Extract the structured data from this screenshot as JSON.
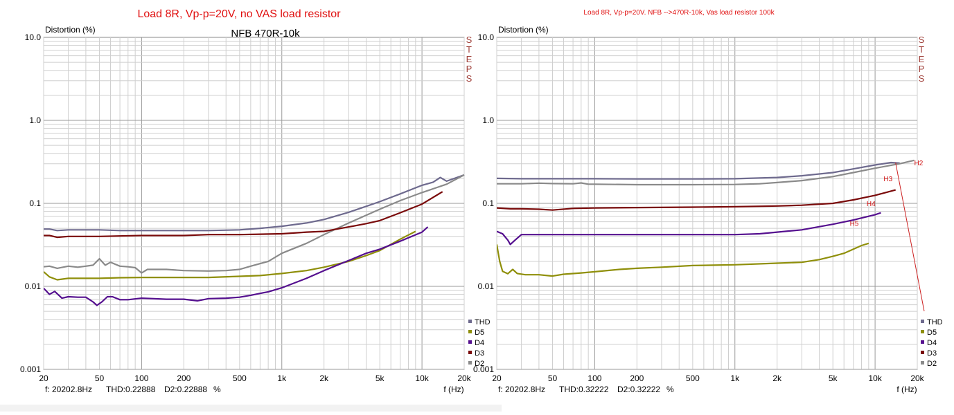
{
  "chart_data": [
    {
      "type": "line",
      "header": "Load 8R, Vp-p=20V, no VAS load resistor",
      "title": "NFB 470R-10k",
      "ylabel": "Distortion (%)",
      "xlabel": "f (Hz)",
      "steps_label": "STEPS",
      "x_scale": "log",
      "y_scale": "log",
      "xlim": [
        20,
        20000
      ],
      "ylim": [
        0.001,
        10
      ],
      "grid": true,
      "legend_position": "bottom-right",
      "x_ticks": [
        "20",
        "50",
        "100",
        "200",
        "500",
        "1k",
        "2k",
        "5k",
        "10k",
        "20k"
      ],
      "y_ticks": [
        "0.001",
        "0.01",
        "0.1",
        "1.0",
        "10.0"
      ],
      "readout": {
        "freq": "f: 20202.8Hz",
        "thd": "THD:0.22888",
        "d2": "D2:0.22888",
        "unit": "%"
      },
      "legend": [
        {
          "name": "THD",
          "color": "#6e6a8e"
        },
        {
          "name": "D5",
          "color": "#8f8f0a"
        },
        {
          "name": "D4",
          "color": "#55108f"
        },
        {
          "name": "D3",
          "color": "#7a0a0a"
        },
        {
          "name": "D2",
          "color": "#8a8a8a"
        }
      ],
      "series": [
        {
          "name": "THD",
          "color": "#6e6a8e",
          "points": [
            [
              20,
              0.049
            ],
            [
              22,
              0.049
            ],
            [
              25,
              0.047
            ],
            [
              30,
              0.048
            ],
            [
              50,
              0.048
            ],
            [
              70,
              0.047
            ],
            [
              100,
              0.047
            ],
            [
              200,
              0.047
            ],
            [
              300,
              0.047
            ],
            [
              500,
              0.048
            ],
            [
              700,
              0.05
            ],
            [
              1000,
              0.053
            ],
            [
              1500,
              0.058
            ],
            [
              2000,
              0.064
            ],
            [
              3000,
              0.078
            ],
            [
              4000,
              0.092
            ],
            [
              5000,
              0.105
            ],
            [
              7000,
              0.13
            ],
            [
              10000,
              0.165
            ],
            [
              12000,
              0.18
            ],
            [
              13500,
              0.205
            ],
            [
              15000,
              0.185
            ],
            [
              20000,
              0.22
            ]
          ]
        },
        {
          "name": "D2",
          "color": "#8a8a8a",
          "points": [
            [
              20,
              0.0172
            ],
            [
              22,
              0.0175
            ],
            [
              25,
              0.0165
            ],
            [
              30,
              0.0175
            ],
            [
              35,
              0.017
            ],
            [
              40,
              0.0175
            ],
            [
              45,
              0.018
            ],
            [
              50,
              0.0215
            ],
            [
              55,
              0.018
            ],
            [
              60,
              0.0195
            ],
            [
              70,
              0.0175
            ],
            [
              80,
              0.0172
            ],
            [
              90,
              0.0168
            ],
            [
              100,
              0.0145
            ],
            [
              110,
              0.016
            ],
            [
              150,
              0.016
            ],
            [
              200,
              0.0155
            ],
            [
              300,
              0.0153
            ],
            [
              400,
              0.0155
            ],
            [
              500,
              0.016
            ],
            [
              600,
              0.0175
            ],
            [
              800,
              0.02
            ],
            [
              1000,
              0.025
            ],
            [
              1500,
              0.033
            ],
            [
              2000,
              0.042
            ],
            [
              3000,
              0.058
            ],
            [
              5000,
              0.085
            ],
            [
              7000,
              0.108
            ],
            [
              10000,
              0.135
            ],
            [
              15000,
              0.17
            ],
            [
              20000,
              0.22
            ]
          ]
        },
        {
          "name": "D3",
          "color": "#7a0a0a",
          "points": [
            [
              20,
              0.041
            ],
            [
              22,
              0.041
            ],
            [
              25,
              0.039
            ],
            [
              30,
              0.04
            ],
            [
              50,
              0.04
            ],
            [
              100,
              0.041
            ],
            [
              200,
              0.041
            ],
            [
              300,
              0.042
            ],
            [
              500,
              0.042
            ],
            [
              1000,
              0.043
            ],
            [
              1500,
              0.045
            ],
            [
              2000,
              0.046
            ],
            [
              3000,
              0.052
            ],
            [
              4000,
              0.057
            ],
            [
              5000,
              0.062
            ],
            [
              7000,
              0.077
            ],
            [
              10000,
              0.098
            ],
            [
              14000,
              0.138
            ]
          ]
        },
        {
          "name": "D5",
          "color": "#8f8f0a",
          "points": [
            [
              20,
              0.015
            ],
            [
              22,
              0.013
            ],
            [
              25,
              0.012
            ],
            [
              30,
              0.0125
            ],
            [
              50,
              0.0125
            ],
            [
              70,
              0.0127
            ],
            [
              100,
              0.0128
            ],
            [
              200,
              0.0128
            ],
            [
              300,
              0.0128
            ],
            [
              500,
              0.0132
            ],
            [
              700,
              0.0135
            ],
            [
              1000,
              0.0143
            ],
            [
              1500,
              0.0155
            ],
            [
              2000,
              0.017
            ],
            [
              3000,
              0.02
            ],
            [
              4000,
              0.0235
            ],
            [
              5000,
              0.027
            ],
            [
              7000,
              0.037
            ],
            [
              9000,
              0.046
            ]
          ]
        },
        {
          "name": "D4",
          "color": "#55108f",
          "points": [
            [
              20,
              0.0095
            ],
            [
              22,
              0.008
            ],
            [
              24,
              0.0087
            ],
            [
              27,
              0.0072
            ],
            [
              30,
              0.0075
            ],
            [
              35,
              0.0074
            ],
            [
              40,
              0.0074
            ],
            [
              45,
              0.0065
            ],
            [
              48,
              0.0059
            ],
            [
              52,
              0.0065
            ],
            [
              57,
              0.0075
            ],
            [
              62,
              0.0075
            ],
            [
              70,
              0.0069
            ],
            [
              80,
              0.0069
            ],
            [
              100,
              0.0072
            ],
            [
              150,
              0.007
            ],
            [
              200,
              0.007
            ],
            [
              250,
              0.0067
            ],
            [
              300,
              0.0071
            ],
            [
              400,
              0.0072
            ],
            [
              500,
              0.0074
            ],
            [
              600,
              0.0078
            ],
            [
              800,
              0.0086
            ],
            [
              1000,
              0.0096
            ],
            [
              1500,
              0.0125
            ],
            [
              2000,
              0.0155
            ],
            [
              3000,
              0.0205
            ],
            [
              4000,
              0.025
            ],
            [
              5000,
              0.028
            ],
            [
              7000,
              0.035
            ],
            [
              10000,
              0.045
            ],
            [
              11000,
              0.052
            ]
          ]
        }
      ]
    },
    {
      "type": "line",
      "header": "Load 8R, Vp-p=20V. NFB -->470R-10k, Vas load resistor 100k",
      "title": "",
      "ylabel": "Distortion (%)",
      "xlabel": "f (Hz)",
      "steps_label": "STEPS",
      "x_scale": "log",
      "y_scale": "log",
      "xlim": [
        20,
        20000
      ],
      "ylim": [
        0.001,
        10
      ],
      "grid": true,
      "legend_position": "bottom-right",
      "x_ticks": [
        "20",
        "50",
        "100",
        "200",
        "500",
        "1k",
        "2k",
        "5k",
        "10k",
        "20k"
      ],
      "y_ticks": [
        "0.001",
        "0.01",
        "0.1",
        "1.0",
        "10.0"
      ],
      "readout": {
        "freq": "f: 20202.8Hz",
        "thd": "THD:0.32222",
        "d2": "D2:0.32222",
        "unit": "%"
      },
      "legend": [
        {
          "name": "THD",
          "color": "#6e6a8e"
        },
        {
          "name": "D5",
          "color": "#8f8f0a"
        },
        {
          "name": "D4",
          "color": "#55108f"
        },
        {
          "name": "D3",
          "color": "#7a0a0a"
        },
        {
          "name": "D2",
          "color": "#8a8a8a"
        }
      ],
      "annotations": [
        {
          "text": "H2",
          "x": 19000,
          "y": 0.31
        },
        {
          "text": "H3",
          "x": 11500,
          "y": 0.2
        },
        {
          "text": "H4",
          "x": 8700,
          "y": 0.1
        },
        {
          "text": "H5",
          "x": 6600,
          "y": 0.058
        }
      ],
      "series": [
        {
          "name": "THD",
          "color": "#6e6a8e",
          "points": [
            [
              20,
              0.2
            ],
            [
              30,
              0.198
            ],
            [
              50,
              0.198
            ],
            [
              100,
              0.198
            ],
            [
              200,
              0.197
            ],
            [
              500,
              0.197
            ],
            [
              1000,
              0.198
            ],
            [
              2000,
              0.205
            ],
            [
              3000,
              0.215
            ],
            [
              5000,
              0.235
            ],
            [
              7000,
              0.26
            ],
            [
              10000,
              0.29
            ],
            [
              13000,
              0.31
            ],
            [
              15000,
              0.305
            ]
          ]
        },
        {
          "name": "D2",
          "color": "#8a8a8a",
          "points": [
            [
              20,
              0.172
            ],
            [
              30,
              0.172
            ],
            [
              40,
              0.175
            ],
            [
              50,
              0.173
            ],
            [
              70,
              0.172
            ],
            [
              80,
              0.176
            ],
            [
              90,
              0.17
            ],
            [
              100,
              0.17
            ],
            [
              200,
              0.168
            ],
            [
              500,
              0.168
            ],
            [
              1000,
              0.169
            ],
            [
              1500,
              0.172
            ],
            [
              2000,
              0.178
            ],
            [
              3000,
              0.188
            ],
            [
              5000,
              0.21
            ],
            [
              7000,
              0.235
            ],
            [
              10000,
              0.265
            ],
            [
              15000,
              0.3
            ],
            [
              19000,
              0.33
            ]
          ]
        },
        {
          "name": "D3",
          "color": "#7a0a0a",
          "points": [
            [
              20,
              0.088
            ],
            [
              25,
              0.086
            ],
            [
              30,
              0.086
            ],
            [
              40,
              0.085
            ],
            [
              50,
              0.083
            ],
            [
              70,
              0.087
            ],
            [
              100,
              0.088
            ],
            [
              200,
              0.089
            ],
            [
              500,
              0.09
            ],
            [
              1000,
              0.091
            ],
            [
              2000,
              0.093
            ],
            [
              3000,
              0.095
            ],
            [
              5000,
              0.1
            ],
            [
              7000,
              0.11
            ],
            [
              10000,
              0.125
            ],
            [
              14000,
              0.145
            ]
          ]
        },
        {
          "name": "D4",
          "color": "#55108f",
          "points": [
            [
              20,
              0.046
            ],
            [
              22,
              0.043
            ],
            [
              24,
              0.036
            ],
            [
              25,
              0.032
            ],
            [
              27,
              0.036
            ],
            [
              30,
              0.042
            ],
            [
              50,
              0.042
            ],
            [
              100,
              0.042
            ],
            [
              200,
              0.042
            ],
            [
              500,
              0.042
            ],
            [
              1000,
              0.042
            ],
            [
              1500,
              0.043
            ],
            [
              2000,
              0.045
            ],
            [
              3000,
              0.048
            ],
            [
              5000,
              0.056
            ],
            [
              7000,
              0.063
            ],
            [
              10000,
              0.073
            ],
            [
              11000,
              0.077
            ]
          ]
        },
        {
          "name": "D5",
          "color": "#8f8f0a",
          "points": [
            [
              20,
              0.032
            ],
            [
              21,
              0.02
            ],
            [
              22,
              0.0152
            ],
            [
              24,
              0.0142
            ],
            [
              26,
              0.016
            ],
            [
              28,
              0.0143
            ],
            [
              32,
              0.0138
            ],
            [
              40,
              0.0138
            ],
            [
              50,
              0.0133
            ],
            [
              60,
              0.014
            ],
            [
              80,
              0.0145
            ],
            [
              100,
              0.015
            ],
            [
              150,
              0.016
            ],
            [
              200,
              0.0165
            ],
            [
              300,
              0.017
            ],
            [
              500,
              0.0178
            ],
            [
              700,
              0.018
            ],
            [
              1000,
              0.0182
            ],
            [
              2000,
              0.019
            ],
            [
              3000,
              0.0195
            ],
            [
              4000,
              0.021
            ],
            [
              5000,
              0.023
            ],
            [
              6000,
              0.025
            ],
            [
              7000,
              0.028
            ],
            [
              8000,
              0.031
            ],
            [
              9000,
              0.033
            ]
          ]
        }
      ]
    }
  ]
}
